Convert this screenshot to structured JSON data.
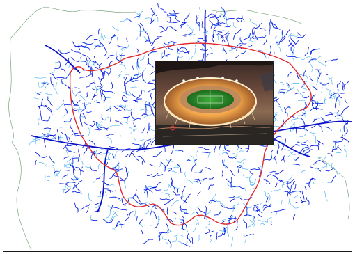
{
  "map": {
    "title": "",
    "place_labels": [
      "",
      "",
      "",
      "",
      ""
    ]
  },
  "colors": {
    "background": "#ffffff",
    "frame": "#1a1a1a",
    "river_dense": "#0a10e0",
    "river_light": "#2aa6ee",
    "boundary": "#e0282c",
    "outer_boundary": "#2a6a2a"
  },
  "icons": {
    "stadium_photo": "olympic-stadium-photo-icon"
  }
}
